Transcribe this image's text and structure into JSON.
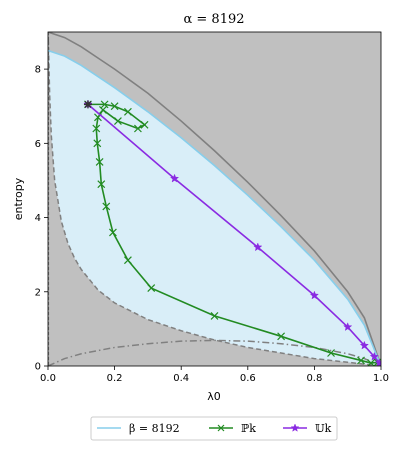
{
  "chart_data": {
    "type": "line",
    "title": "α = 8192",
    "xlabel": "λ0",
    "ylabel": "entropy",
    "xlim": [
      0,
      1
    ],
    "ylim": [
      0,
      9
    ],
    "xticks": [
      "0.0",
      "0.2",
      "0.4",
      "0.6",
      "0.8",
      "1.0"
    ],
    "xtick_values": [
      0,
      0.2,
      0.4,
      0.6,
      0.8,
      1.0
    ],
    "yticks": [
      "0",
      "2",
      "4",
      "6",
      "8"
    ],
    "ytick_values": [
      0,
      2,
      4,
      6,
      8
    ],
    "grid": false,
    "legend_position": "bottom-outside",
    "background_color": "#c0c0c0",
    "region_color": "#d9eef8",
    "region_edge_color": "#87ceeb",
    "upper_bound_color": "#808080",
    "series": [
      {
        "name": "β = 8192",
        "label_text": "β = 8192",
        "style": "line",
        "color": "#87ceeb",
        "x": [
          0,
          0.05,
          0.1,
          0.15,
          0.2,
          0.3,
          0.4,
          0.5,
          0.6,
          0.7,
          0.8,
          0.9,
          0.95,
          1.0
        ],
        "y": [
          8.5,
          8.35,
          8.1,
          7.8,
          7.5,
          6.85,
          6.15,
          5.4,
          4.6,
          3.75,
          2.85,
          1.8,
          1.1,
          0.0
        ]
      },
      {
        "name": "ℙk",
        "label_text": "ℙk",
        "style": "line-x",
        "color": "#228b22",
        "x": [
          0.12,
          0.17,
          0.2,
          0.24,
          0.29,
          0.27,
          0.21,
          0.165,
          0.15,
          0.145,
          0.148,
          0.155,
          0.16,
          0.175,
          0.195,
          0.24,
          0.31,
          0.5,
          0.7,
          0.85,
          0.94,
          0.97,
          0.99
        ],
        "y": [
          7.05,
          7.05,
          7.0,
          6.85,
          6.5,
          6.4,
          6.6,
          6.9,
          6.7,
          6.4,
          6.0,
          5.5,
          4.9,
          4.3,
          3.6,
          2.85,
          2.1,
          1.35,
          0.8,
          0.35,
          0.15,
          0.08,
          0.1
        ]
      },
      {
        "name": "𝕌k",
        "label_text": "𝕌k",
        "style": "line-star",
        "color": "#8a2be2",
        "x": [
          0.12,
          0.38,
          0.63,
          0.8,
          0.9,
          0.95,
          0.98,
          0.995
        ],
        "y": [
          7.05,
          5.05,
          3.2,
          1.9,
          1.05,
          0.55,
          0.25,
          0.08
        ]
      }
    ],
    "reference_curves": {
      "upper_bound": {
        "x": [
          0,
          0.05,
          0.1,
          0.15,
          0.2,
          0.3,
          0.4,
          0.5,
          0.6,
          0.7,
          0.8,
          0.9,
          0.95,
          1.0
        ],
        "y": [
          9.0,
          8.85,
          8.6,
          8.3,
          8.0,
          7.35,
          6.6,
          5.8,
          4.95,
          4.05,
          3.1,
          2.0,
          1.3,
          0.0
        ]
      },
      "dashed_lower": {
        "x": [
          0.001,
          0.005,
          0.01,
          0.02,
          0.04,
          0.06,
          0.08,
          0.1,
          0.15,
          0.2,
          0.3,
          0.4,
          0.5,
          0.6,
          0.7,
          0.8,
          0.9,
          0.95,
          1.0
        ],
        "y": [
          8.8,
          7.3,
          6.2,
          5.0,
          3.9,
          3.3,
          2.9,
          2.6,
          2.05,
          1.7,
          1.25,
          0.95,
          0.7,
          0.5,
          0.35,
          0.2,
          0.1,
          0.05,
          0.0
        ]
      },
      "dashdot_lower": {
        "x": [
          0.0,
          0.05,
          0.1,
          0.2,
          0.3,
          0.4,
          0.5,
          0.6,
          0.7,
          0.8,
          0.9,
          0.95,
          1.0
        ],
        "y": [
          0.0,
          0.2,
          0.33,
          0.5,
          0.6,
          0.67,
          0.69,
          0.67,
          0.6,
          0.5,
          0.33,
          0.2,
          0.0
        ]
      }
    },
    "start_point": {
      "x": 0.12,
      "y": 7.05,
      "color": "#333333"
    }
  }
}
